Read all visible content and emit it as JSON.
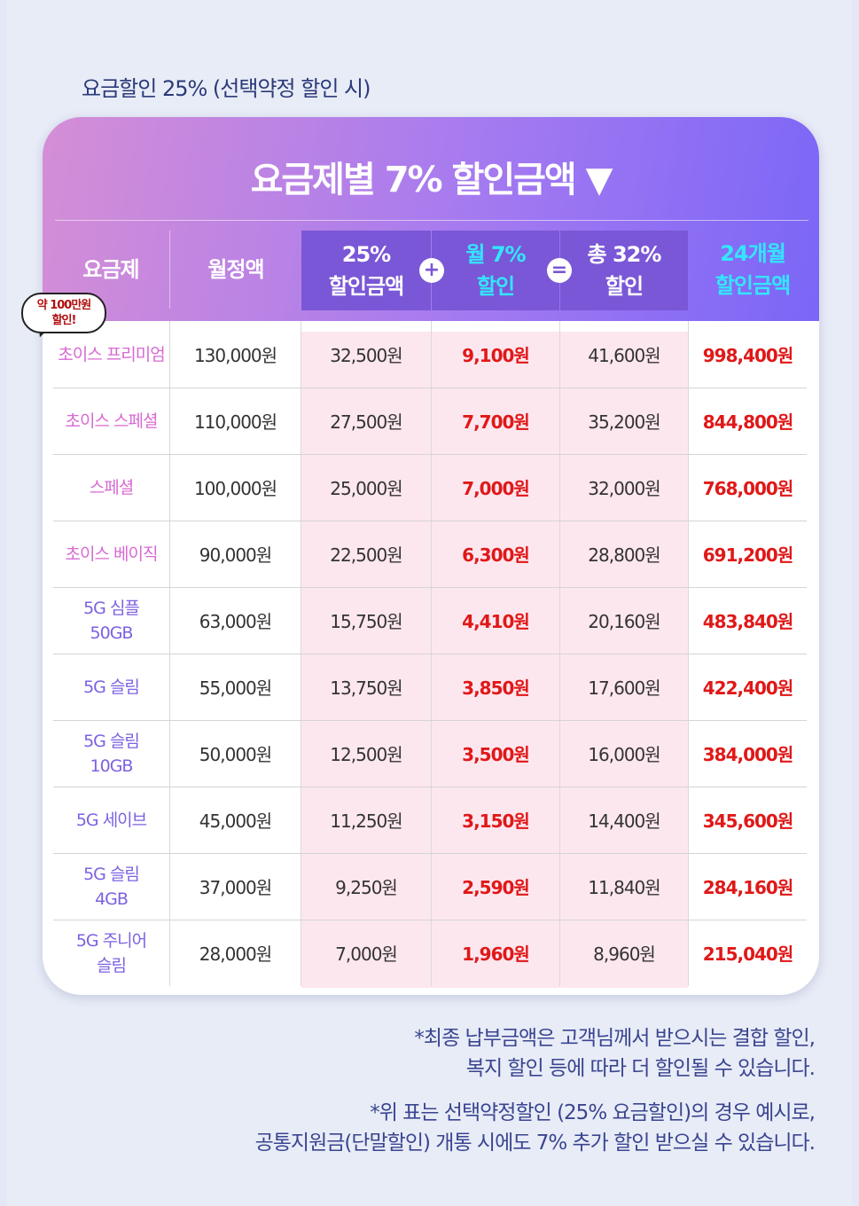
{
  "intro_text": "요금할인 25% (선택약정 할인 시)",
  "table": {
    "title": "요금제별 7% 할인금액 ▼",
    "headers": {
      "plan": "요금제",
      "monthly": "월정액",
      "discount25_line1": "25%",
      "discount25_line2": "할인금액",
      "monthly7_line1": "월 7%",
      "monthly7_line2": "할인",
      "total32_line1": "총 32%",
      "total32_line2": "할인",
      "months24_line1": "24개월",
      "months24_line2": "할인금액"
    },
    "plus_symbol": "+",
    "equals_symbol": "=",
    "badge_line1": "약 100만원",
    "badge_line2": "할인!",
    "rows": [
      {
        "plan_line1": "초이스 프리미엄",
        "plan_line2": "",
        "monthly": "130,000원",
        "discount25": "32,500원",
        "monthly7": "9,100원",
        "total32": "41,600원",
        "months24": "998,400원"
      },
      {
        "plan_line1": "초이스 스페셜",
        "plan_line2": "",
        "monthly": "110,000원",
        "discount25": "27,500원",
        "monthly7": "7,700원",
        "total32": "35,200원",
        "months24": "844,800원"
      },
      {
        "plan_line1": "스페셜",
        "plan_line2": "",
        "monthly": "100,000원",
        "discount25": "25,000원",
        "monthly7": "7,000원",
        "total32": "32,000원",
        "months24": "768,000원"
      },
      {
        "plan_line1": "초이스 베이직",
        "plan_line2": "",
        "monthly": "90,000원",
        "discount25": "22,500원",
        "monthly7": "6,300원",
        "total32": "28,800원",
        "months24": "691,200원"
      },
      {
        "plan_line1": "5G 심플",
        "plan_line2": "50GB",
        "monthly": "63,000원",
        "discount25": "15,750원",
        "monthly7": "4,410원",
        "total32": "20,160원",
        "months24": "483,840원"
      },
      {
        "plan_line1": "5G 슬림",
        "plan_line2": "",
        "monthly": "55,000원",
        "discount25": "13,750원",
        "monthly7": "3,850원",
        "total32": "17,600원",
        "months24": "422,400원"
      },
      {
        "plan_line1": "5G 슬림",
        "plan_line2": "10GB",
        "monthly": "50,000원",
        "discount25": "12,500원",
        "monthly7": "3,500원",
        "total32": "16,000원",
        "months24": "384,000원"
      },
      {
        "plan_line1": "5G 세이브",
        "plan_line2": "",
        "monthly": "45,000원",
        "discount25": "11,250원",
        "monthly7": "3,150원",
        "total32": "14,400원",
        "months24": "345,600원"
      },
      {
        "plan_line1": "5G 슬림",
        "plan_line2": "4GB",
        "monthly": "37,000원",
        "discount25": "9,250원",
        "monthly7": "2,590원",
        "total32": "11,840원",
        "months24": "284,160원"
      },
      {
        "plan_line1": "5G 주니어",
        "plan_line2": "슬림",
        "monthly": "28,000원",
        "discount25": "7,000원",
        "monthly7": "1,960원",
        "total32": "8,960원",
        "months24": "215,040원"
      }
    ]
  },
  "footnotes": {
    "note1_line1": "*최종 납부금액은 고객님께서 받으시는 결합 할인,",
    "note1_line2": "복지 할인 등에 따라 더 할인될 수 있습니다.",
    "note2_line1": "*위 표는 선택약정할인 (25% 요금할인)의 경우 예시로,",
    "note2_line2": "공통지원금(단말할인) 개통 시에도 7% 추가 할인 받으실 수 있습니다."
  },
  "colors": {
    "header_gradient_start": "#d58ed6",
    "header_gradient_end": "#7b66f7",
    "highlight_header": "#7a57d6",
    "pink_column": "#fde7ef",
    "discount_red": "#e01818",
    "plan_pink": "#d86ad2",
    "plan_purple": "#7d61e2",
    "accent_cyan": "#33e6ff"
  }
}
